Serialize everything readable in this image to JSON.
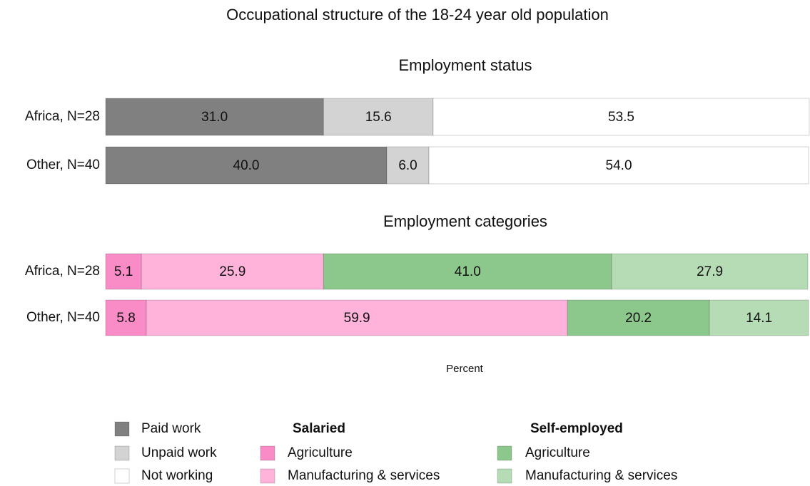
{
  "title": "Occupational structure of the 18-24 year old population",
  "xlabel": "Percent",
  "chart_data": [
    {
      "type": "bar",
      "orientation": "horizontal",
      "stacked": true,
      "title": "Employment status",
      "categories": [
        "Africa, N=28",
        "Other, N=40"
      ],
      "xlim": [
        0,
        100
      ],
      "series": [
        {
          "name": "Paid work",
          "color": "#808080",
          "values": [
            31.0,
            40.0
          ],
          "value_labels": [
            "31.0",
            "40.0"
          ]
        },
        {
          "name": "Unpaid work",
          "color": "#d3d3d3",
          "values": [
            15.6,
            6.0
          ],
          "value_labels": [
            "15.6",
            "6.0"
          ]
        },
        {
          "name": "Not working",
          "color": "#ffffff",
          "values": [
            53.5,
            54.0
          ],
          "value_labels": [
            "53.5",
            "54.0"
          ]
        }
      ]
    },
    {
      "type": "bar",
      "orientation": "horizontal",
      "stacked": true,
      "title": "Employment categories",
      "categories": [
        "Africa, N=28",
        "Other, N=40"
      ],
      "xlim": [
        0,
        100
      ],
      "series": [
        {
          "name": "Agriculture",
          "group": "Salaried",
          "color": "#f98cc6",
          "values": [
            5.1,
            5.8
          ],
          "value_labels": [
            "5.1",
            "5.8"
          ]
        },
        {
          "name": "Manufacturing & services",
          "group": "Salaried",
          "color": "#ffb3db",
          "values": [
            25.9,
            59.9
          ],
          "value_labels": [
            "25.9",
            "59.9"
          ]
        },
        {
          "name": "Agriculture",
          "group": "Self-employed",
          "color": "#8cc78c",
          "values": [
            41.0,
            20.2
          ],
          "value_labels": [
            "41.0",
            "20.2"
          ]
        },
        {
          "name": "Manufacturing & services",
          "group": "Self-employed",
          "color": "#b5dcb5",
          "values": [
            27.9,
            14.1
          ],
          "value_labels": [
            "27.9",
            "14.1"
          ]
        }
      ]
    }
  ]
}
